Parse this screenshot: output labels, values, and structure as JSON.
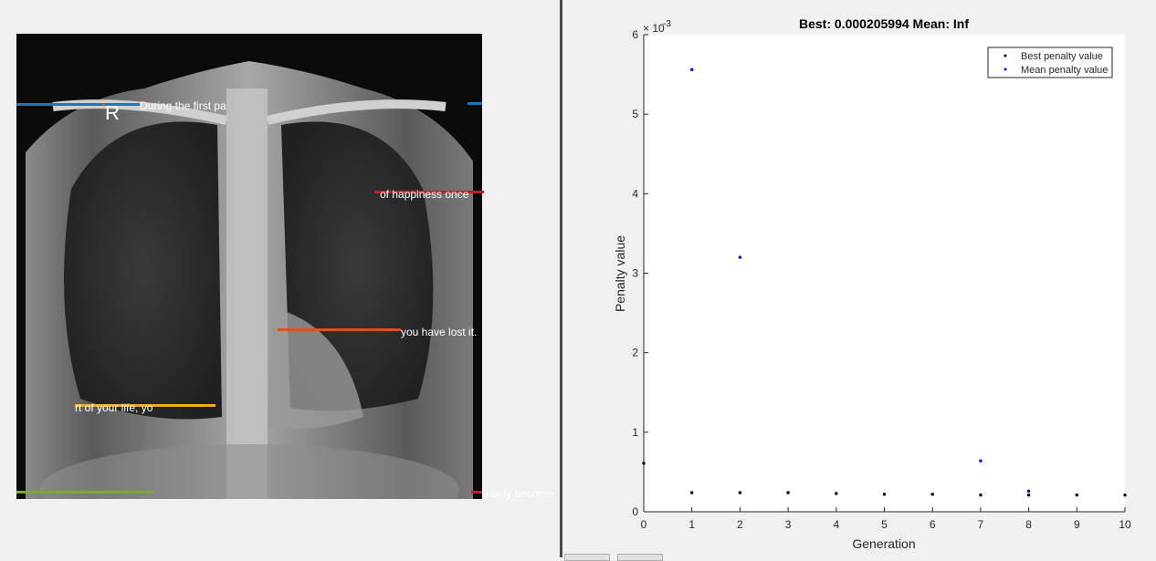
{
  "xray_panel": {
    "side_marker": "R",
    "overlay_texts": [
      "During the first pa",
      "of happiness once",
      "you have lost it.",
      "rt of your life, yo",
      "u only become"
    ],
    "line_colors": {
      "blue": "#1f77b4",
      "red": "#c0202a",
      "orange": "#e0501e",
      "yellow": "#e8b020",
      "green": "#77ac30"
    }
  },
  "chart_data": {
    "type": "scatter",
    "title": "Best: 0.000205994 Mean: Inf",
    "xlabel": "Generation",
    "ylabel": "Penalty value",
    "exponent_label": "× 10",
    "exponent_power": "-3",
    "xlim": [
      0,
      10
    ],
    "ylim": [
      0,
      6
    ],
    "xticks": [
      "0",
      "1",
      "2",
      "3",
      "4",
      "5",
      "6",
      "7",
      "8",
      "9",
      "10"
    ],
    "yticks": [
      "0",
      "1",
      "2",
      "3",
      "4",
      "5",
      "6"
    ],
    "legend_position": "top-right",
    "series": [
      {
        "name": "Best penalty value",
        "color": "#000000",
        "x": [
          0,
          1,
          2,
          3,
          4,
          5,
          6,
          7,
          8,
          9,
          10
        ],
        "y": [
          0.61,
          0.24,
          0.24,
          0.24,
          0.23,
          0.22,
          0.22,
          0.21,
          0.21,
          0.21,
          0.21
        ]
      },
      {
        "name": "Mean penalty value",
        "color": "#0000ff",
        "x": [
          1,
          2,
          7,
          8
        ],
        "y": [
          5.56,
          3.2,
          0.64,
          0.26
        ]
      }
    ]
  }
}
